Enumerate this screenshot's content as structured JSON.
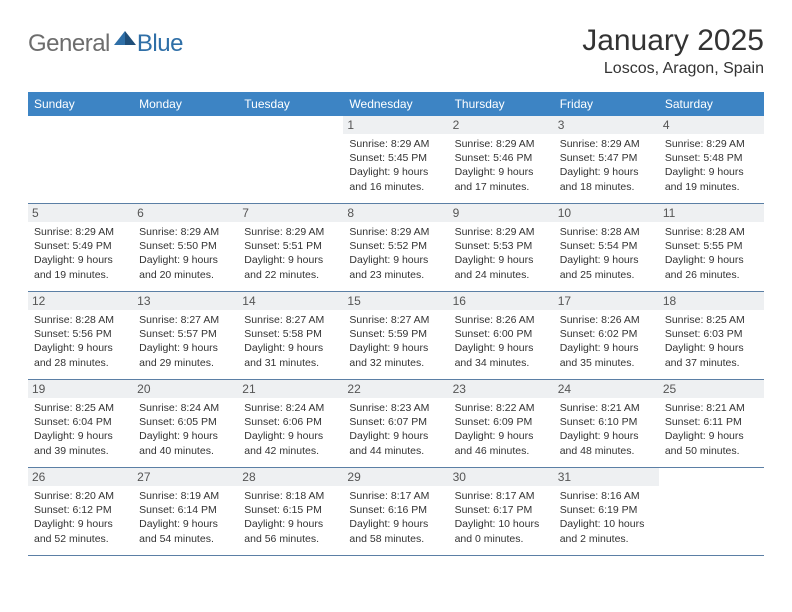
{
  "brand": {
    "part1": "General",
    "part2": "Blue"
  },
  "title": "January 2025",
  "location": "Loscos, Aragon, Spain",
  "colors": {
    "header_bg": "#3d84c4",
    "daynum_bg": "#eef0f2",
    "rule": "#5b7fa5",
    "brand_general": "#6d6d6d",
    "brand_blue": "#2f6fa7"
  },
  "weekdays": [
    "Sunday",
    "Monday",
    "Tuesday",
    "Wednesday",
    "Thursday",
    "Friday",
    "Saturday"
  ],
  "weeks": [
    [
      {
        "n": "",
        "sr": "",
        "ss": "",
        "dl": ""
      },
      {
        "n": "",
        "sr": "",
        "ss": "",
        "dl": ""
      },
      {
        "n": "",
        "sr": "",
        "ss": "",
        "dl": ""
      },
      {
        "n": "1",
        "sr": "Sunrise: 8:29 AM",
        "ss": "Sunset: 5:45 PM",
        "dl": "Daylight: 9 hours and 16 minutes."
      },
      {
        "n": "2",
        "sr": "Sunrise: 8:29 AM",
        "ss": "Sunset: 5:46 PM",
        "dl": "Daylight: 9 hours and 17 minutes."
      },
      {
        "n": "3",
        "sr": "Sunrise: 8:29 AM",
        "ss": "Sunset: 5:47 PM",
        "dl": "Daylight: 9 hours and 18 minutes."
      },
      {
        "n": "4",
        "sr": "Sunrise: 8:29 AM",
        "ss": "Sunset: 5:48 PM",
        "dl": "Daylight: 9 hours and 19 minutes."
      }
    ],
    [
      {
        "n": "5",
        "sr": "Sunrise: 8:29 AM",
        "ss": "Sunset: 5:49 PM",
        "dl": "Daylight: 9 hours and 19 minutes."
      },
      {
        "n": "6",
        "sr": "Sunrise: 8:29 AM",
        "ss": "Sunset: 5:50 PM",
        "dl": "Daylight: 9 hours and 20 minutes."
      },
      {
        "n": "7",
        "sr": "Sunrise: 8:29 AM",
        "ss": "Sunset: 5:51 PM",
        "dl": "Daylight: 9 hours and 22 minutes."
      },
      {
        "n": "8",
        "sr": "Sunrise: 8:29 AM",
        "ss": "Sunset: 5:52 PM",
        "dl": "Daylight: 9 hours and 23 minutes."
      },
      {
        "n": "9",
        "sr": "Sunrise: 8:29 AM",
        "ss": "Sunset: 5:53 PM",
        "dl": "Daylight: 9 hours and 24 minutes."
      },
      {
        "n": "10",
        "sr": "Sunrise: 8:28 AM",
        "ss": "Sunset: 5:54 PM",
        "dl": "Daylight: 9 hours and 25 minutes."
      },
      {
        "n": "11",
        "sr": "Sunrise: 8:28 AM",
        "ss": "Sunset: 5:55 PM",
        "dl": "Daylight: 9 hours and 26 minutes."
      }
    ],
    [
      {
        "n": "12",
        "sr": "Sunrise: 8:28 AM",
        "ss": "Sunset: 5:56 PM",
        "dl": "Daylight: 9 hours and 28 minutes."
      },
      {
        "n": "13",
        "sr": "Sunrise: 8:27 AM",
        "ss": "Sunset: 5:57 PM",
        "dl": "Daylight: 9 hours and 29 minutes."
      },
      {
        "n": "14",
        "sr": "Sunrise: 8:27 AM",
        "ss": "Sunset: 5:58 PM",
        "dl": "Daylight: 9 hours and 31 minutes."
      },
      {
        "n": "15",
        "sr": "Sunrise: 8:27 AM",
        "ss": "Sunset: 5:59 PM",
        "dl": "Daylight: 9 hours and 32 minutes."
      },
      {
        "n": "16",
        "sr": "Sunrise: 8:26 AM",
        "ss": "Sunset: 6:00 PM",
        "dl": "Daylight: 9 hours and 34 minutes."
      },
      {
        "n": "17",
        "sr": "Sunrise: 8:26 AM",
        "ss": "Sunset: 6:02 PM",
        "dl": "Daylight: 9 hours and 35 minutes."
      },
      {
        "n": "18",
        "sr": "Sunrise: 8:25 AM",
        "ss": "Sunset: 6:03 PM",
        "dl": "Daylight: 9 hours and 37 minutes."
      }
    ],
    [
      {
        "n": "19",
        "sr": "Sunrise: 8:25 AM",
        "ss": "Sunset: 6:04 PM",
        "dl": "Daylight: 9 hours and 39 minutes."
      },
      {
        "n": "20",
        "sr": "Sunrise: 8:24 AM",
        "ss": "Sunset: 6:05 PM",
        "dl": "Daylight: 9 hours and 40 minutes."
      },
      {
        "n": "21",
        "sr": "Sunrise: 8:24 AM",
        "ss": "Sunset: 6:06 PM",
        "dl": "Daylight: 9 hours and 42 minutes."
      },
      {
        "n": "22",
        "sr": "Sunrise: 8:23 AM",
        "ss": "Sunset: 6:07 PM",
        "dl": "Daylight: 9 hours and 44 minutes."
      },
      {
        "n": "23",
        "sr": "Sunrise: 8:22 AM",
        "ss": "Sunset: 6:09 PM",
        "dl": "Daylight: 9 hours and 46 minutes."
      },
      {
        "n": "24",
        "sr": "Sunrise: 8:21 AM",
        "ss": "Sunset: 6:10 PM",
        "dl": "Daylight: 9 hours and 48 minutes."
      },
      {
        "n": "25",
        "sr": "Sunrise: 8:21 AM",
        "ss": "Sunset: 6:11 PM",
        "dl": "Daylight: 9 hours and 50 minutes."
      }
    ],
    [
      {
        "n": "26",
        "sr": "Sunrise: 8:20 AM",
        "ss": "Sunset: 6:12 PM",
        "dl": "Daylight: 9 hours and 52 minutes."
      },
      {
        "n": "27",
        "sr": "Sunrise: 8:19 AM",
        "ss": "Sunset: 6:14 PM",
        "dl": "Daylight: 9 hours and 54 minutes."
      },
      {
        "n": "28",
        "sr": "Sunrise: 8:18 AM",
        "ss": "Sunset: 6:15 PM",
        "dl": "Daylight: 9 hours and 56 minutes."
      },
      {
        "n": "29",
        "sr": "Sunrise: 8:17 AM",
        "ss": "Sunset: 6:16 PM",
        "dl": "Daylight: 9 hours and 58 minutes."
      },
      {
        "n": "30",
        "sr": "Sunrise: 8:17 AM",
        "ss": "Sunset: 6:17 PM",
        "dl": "Daylight: 10 hours and 0 minutes."
      },
      {
        "n": "31",
        "sr": "Sunrise: 8:16 AM",
        "ss": "Sunset: 6:19 PM",
        "dl": "Daylight: 10 hours and 2 minutes."
      },
      {
        "n": "",
        "sr": "",
        "ss": "",
        "dl": ""
      }
    ]
  ]
}
